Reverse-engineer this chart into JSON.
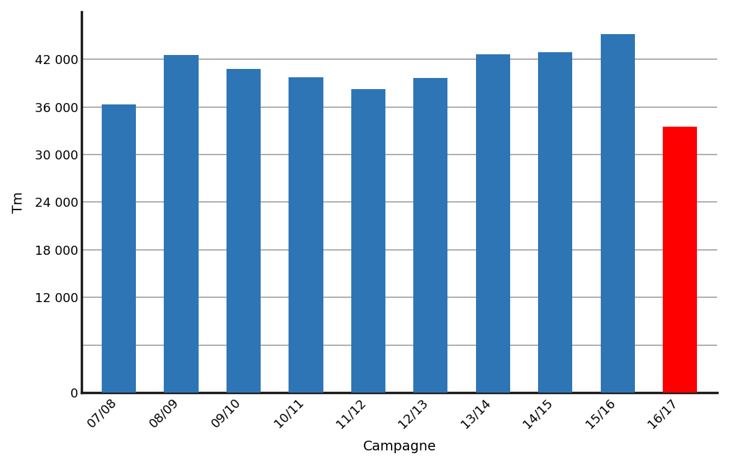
{
  "categories": [
    "07/08",
    "08/09",
    "09/10",
    "10/11",
    "11/12",
    "12/13",
    "13/14",
    "14/15",
    "15/16",
    "16/17"
  ],
  "values": [
    36300,
    42500,
    40800,
    39700,
    38200,
    39600,
    42600,
    42900,
    45200,
    33500
  ],
  "bar_colors": [
    "#2e75b6",
    "#2e75b6",
    "#2e75b6",
    "#2e75b6",
    "#2e75b6",
    "#2e75b6",
    "#2e75b6",
    "#2e75b6",
    "#2e75b6",
    "#ff0000"
  ],
  "ylabel": "Tm",
  "xlabel": "Campagne",
  "ylim": [
    0,
    48000
  ],
  "ytick_values": [
    0,
    6000,
    12000,
    18000,
    24000,
    30000,
    36000,
    42000
  ],
  "ytick_labels": [
    "0",
    "",
    "12 000",
    "18 000",
    "24 000",
    "30 000",
    "36 000",
    "42 000"
  ],
  "grid_values": [
    6000,
    12000,
    18000,
    24000,
    30000,
    36000,
    42000
  ],
  "background_color": "#ffffff",
  "grid_color": "#a0a0a0",
  "bar_width": 0.55,
  "ylabel_fontsize": 14,
  "xlabel_fontsize": 14,
  "tick_fontsize": 13,
  "spine_color": "#1a1a1a",
  "spine_linewidth": 2.5
}
